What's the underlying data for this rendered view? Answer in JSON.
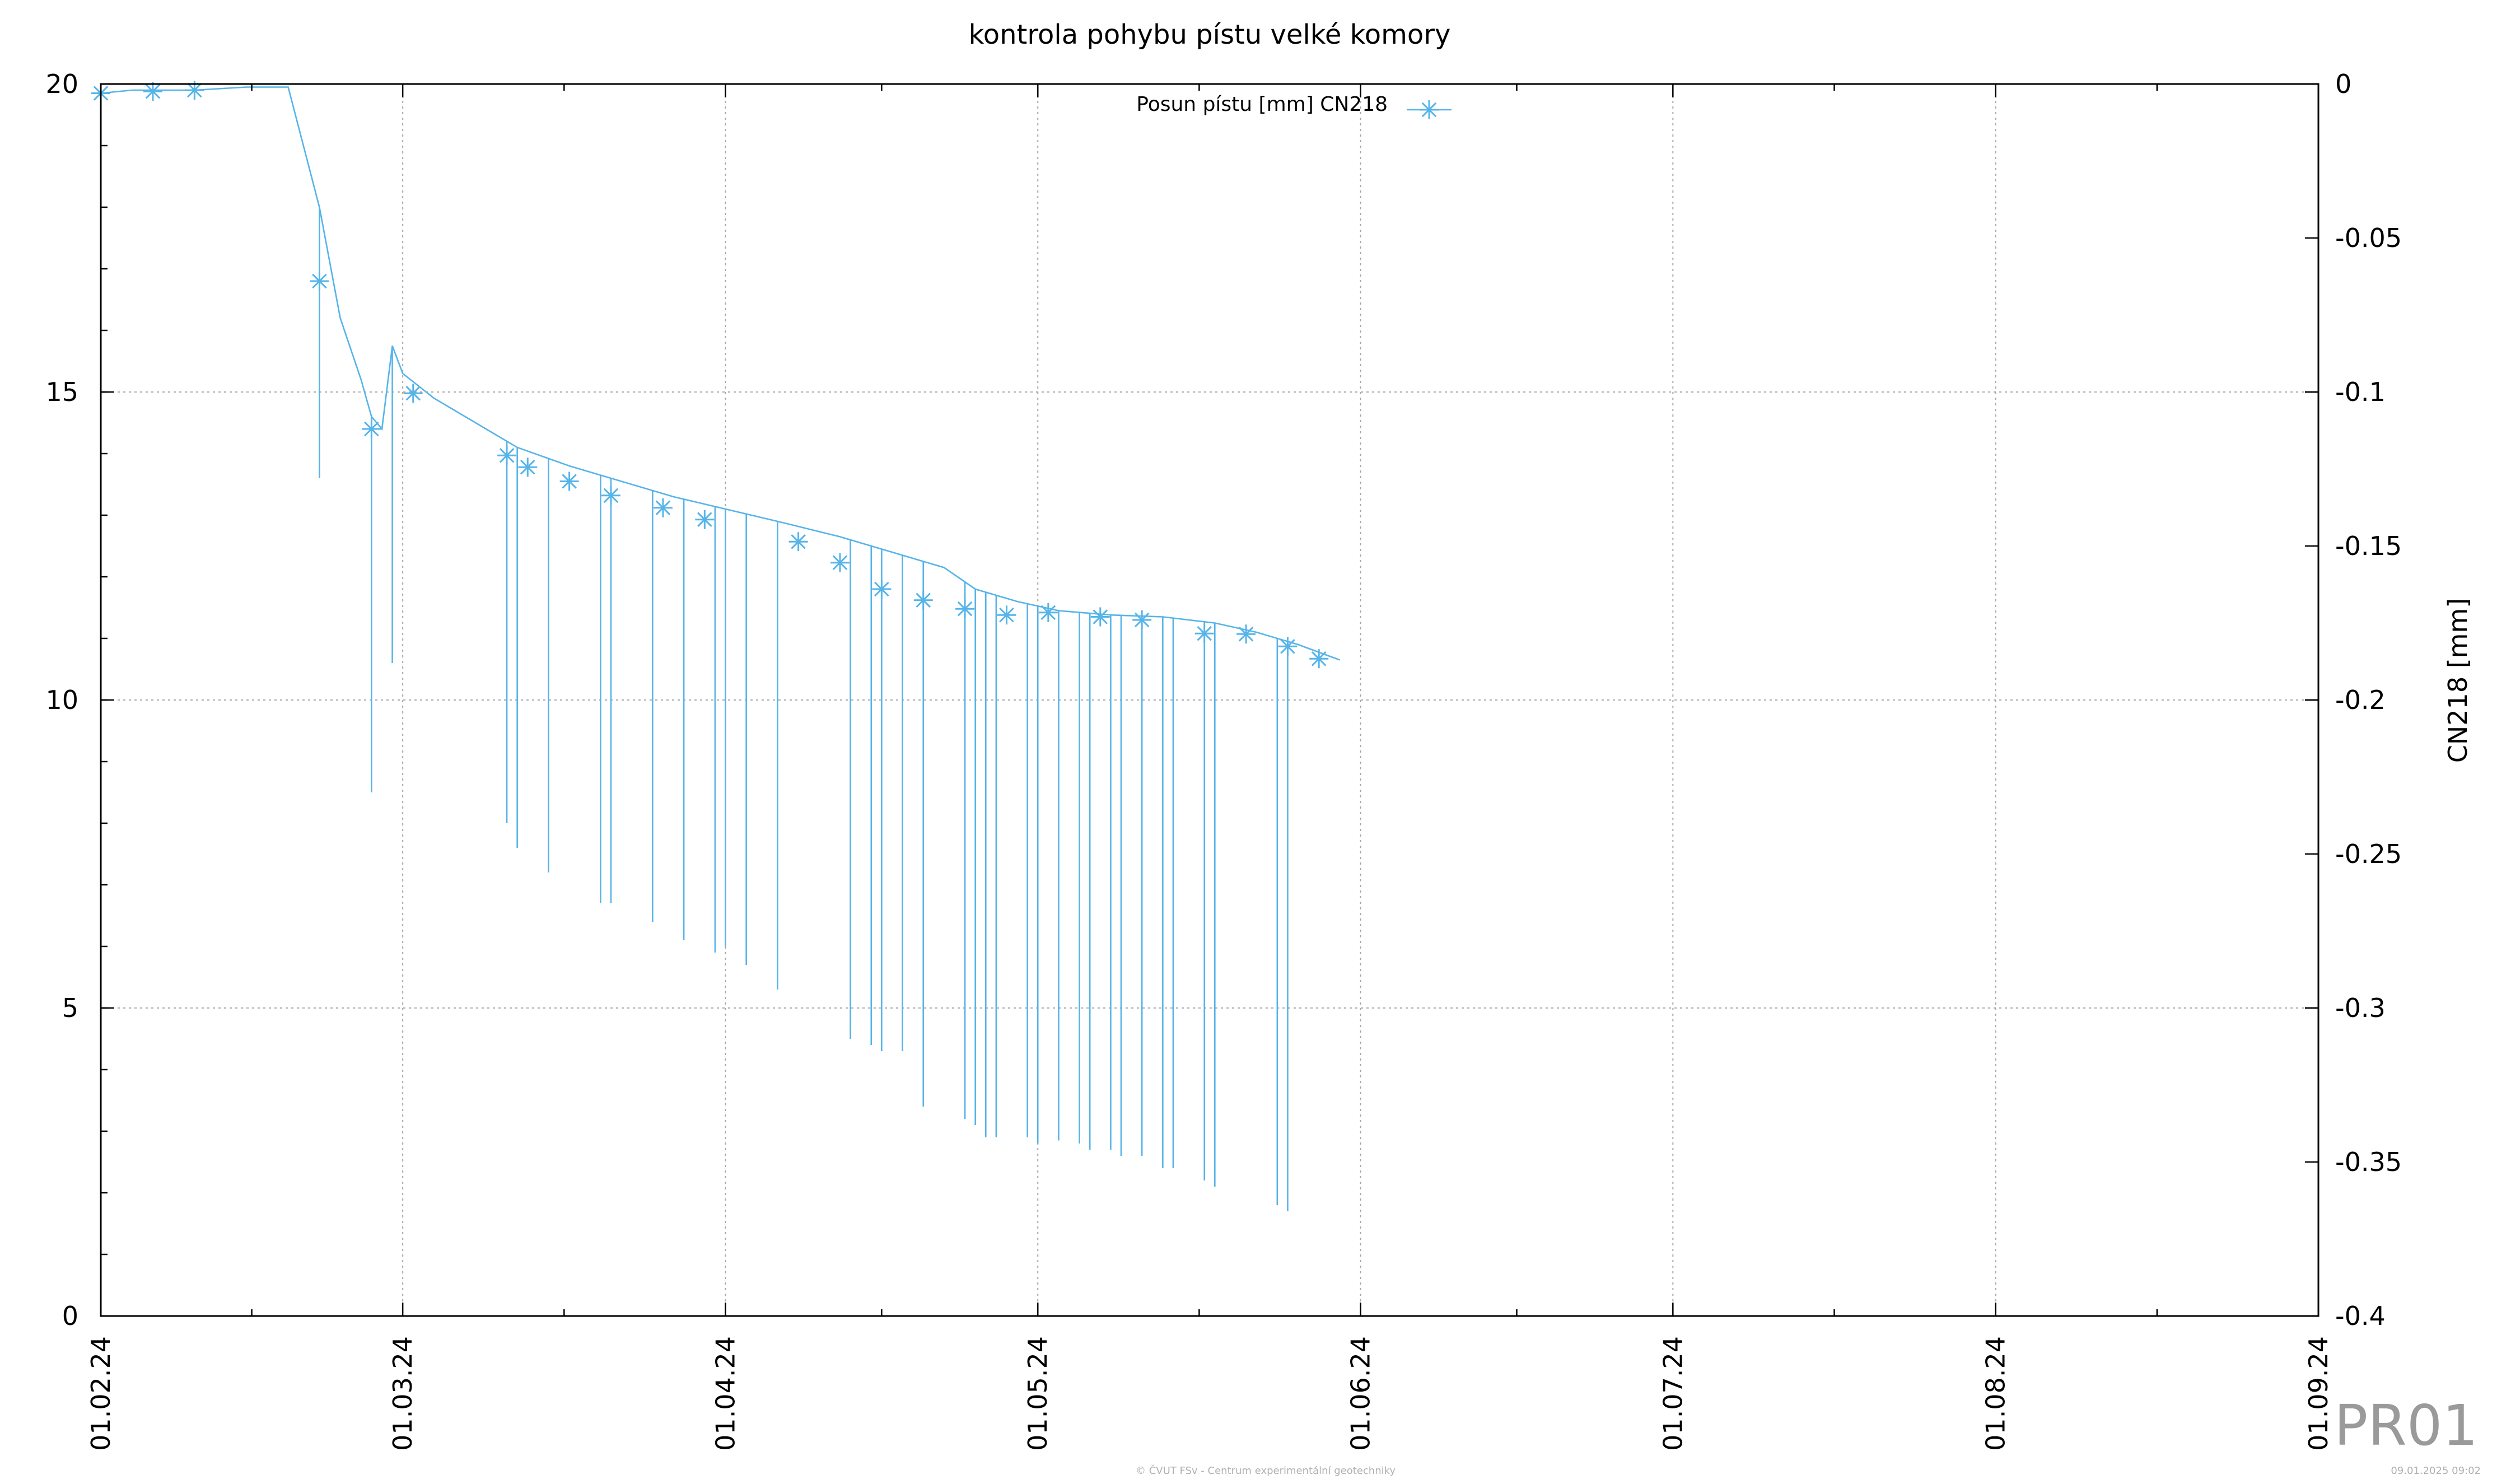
{
  "chart_data": {
    "type": "line",
    "title": "kontrola pohybu pístu velké komory",
    "ylabel": "",
    "y2label": "CN218 [mm]",
    "xlim": [
      "2024-02-01",
      "2024-09-01"
    ],
    "ylim": [
      0,
      20
    ],
    "y2lim": [
      -0.4,
      0
    ],
    "grid": true,
    "legend_position": "top-center",
    "x_tick_labels": [
      "01.02.24",
      "01.03.24",
      "01.04.24",
      "01.05.24",
      "01.06.24",
      "01.07.24",
      "01.08.24",
      "01.09.24"
    ],
    "y_tick_labels": [
      "0",
      "5",
      "10",
      "15",
      "20"
    ],
    "y2_tick_labels": [
      "-0.4",
      "-0.35",
      "-0.3",
      "-0.25",
      "-0.2",
      "-0.15",
      "-0.1",
      "-0.05",
      "0"
    ],
    "series": [
      {
        "name": "Posun pístu [mm] CN218",
        "color": "#56b4e9",
        "marker": "asterisk",
        "points": [
          [
            "2024-02-01",
            19.85
          ],
          [
            "2024-02-04",
            19.9
          ],
          [
            "2024-02-10",
            19.9
          ],
          [
            "2024-02-15",
            19.95
          ],
          [
            "2024-02-19",
            19.95
          ],
          [
            "2024-02-22",
            18.0
          ],
          [
            "2024-02-24",
            16.2
          ],
          [
            "2024-02-26",
            15.2
          ],
          [
            "2024-02-27",
            14.6
          ],
          [
            "2024-02-28",
            14.4
          ],
          [
            "2024-02-29",
            15.75
          ],
          [
            "2024-03-01",
            15.3
          ],
          [
            "2024-03-04",
            14.9
          ],
          [
            "2024-03-08",
            14.5
          ],
          [
            "2024-03-12",
            14.1
          ],
          [
            "2024-03-17",
            13.8
          ],
          [
            "2024-03-22",
            13.55
          ],
          [
            "2024-03-27",
            13.3
          ],
          [
            "2024-04-01",
            13.1
          ],
          [
            "2024-04-06",
            12.9
          ],
          [
            "2024-04-12",
            12.65
          ],
          [
            "2024-04-17",
            12.4
          ],
          [
            "2024-04-22",
            12.15
          ],
          [
            "2024-04-25",
            11.8
          ],
          [
            "2024-04-29",
            11.6
          ],
          [
            "2024-05-03",
            11.45
          ],
          [
            "2024-05-08",
            11.38
          ],
          [
            "2024-05-13",
            11.35
          ],
          [
            "2024-05-18",
            11.25
          ],
          [
            "2024-05-22",
            11.1
          ],
          [
            "2024-05-26",
            10.9
          ],
          [
            "2024-05-30",
            10.65
          ]
        ],
        "markers": [
          [
            "2024-02-01",
            19.85
          ],
          [
            "2024-02-06",
            19.88
          ],
          [
            "2024-02-10",
            19.9
          ],
          [
            "2024-02-22",
            16.8
          ],
          [
            "2024-02-27",
            14.4
          ],
          [
            "2024-03-02",
            14.98
          ],
          [
            "2024-03-11",
            13.97
          ],
          [
            "2024-03-13",
            13.78
          ],
          [
            "2024-03-17",
            13.55
          ],
          [
            "2024-03-21",
            13.32
          ],
          [
            "2024-03-26",
            13.12
          ],
          [
            "2024-03-30",
            12.93
          ],
          [
            "2024-04-08",
            12.57
          ],
          [
            "2024-04-12",
            12.23
          ],
          [
            "2024-04-16",
            11.8
          ],
          [
            "2024-04-20",
            11.62
          ],
          [
            "2024-04-24",
            11.48
          ],
          [
            "2024-04-28",
            11.38
          ],
          [
            "2024-05-02",
            11.42
          ],
          [
            "2024-05-07",
            11.35
          ],
          [
            "2024-05-11",
            11.3
          ],
          [
            "2024-05-17",
            11.08
          ],
          [
            "2024-05-21",
            11.07
          ],
          [
            "2024-05-25",
            10.87
          ],
          [
            "2024-05-28",
            10.67
          ]
        ],
        "drop_spikes": [
          [
            "2024-02-22",
            13.6
          ],
          [
            "2024-02-27",
            8.5
          ],
          [
            "2024-02-29",
            10.6
          ],
          [
            "2024-03-11",
            8.0
          ],
          [
            "2024-03-12",
            7.6
          ],
          [
            "2024-03-15",
            7.2
          ],
          [
            "2024-03-20",
            6.7
          ],
          [
            "2024-03-21",
            6.7
          ],
          [
            "2024-03-25",
            6.4
          ],
          [
            "2024-03-28",
            6.1
          ],
          [
            "2024-03-31",
            5.9
          ],
          [
            "2024-04-01",
            6.0
          ],
          [
            "2024-04-03",
            5.7
          ],
          [
            "2024-04-06",
            5.3
          ],
          [
            "2024-04-13",
            4.5
          ],
          [
            "2024-04-15",
            4.4
          ],
          [
            "2024-04-16",
            4.3
          ],
          [
            "2024-04-18",
            4.3
          ],
          [
            "2024-04-20",
            3.4
          ],
          [
            "2024-04-24",
            3.2
          ],
          [
            "2024-04-25",
            3.1
          ],
          [
            "2024-04-26",
            2.9
          ],
          [
            "2024-04-27",
            2.9
          ],
          [
            "2024-04-30",
            2.9
          ],
          [
            "2024-05-01",
            2.8
          ],
          [
            "2024-05-03",
            2.85
          ],
          [
            "2024-05-05",
            2.8
          ],
          [
            "2024-05-06",
            2.7
          ],
          [
            "2024-05-08",
            2.7
          ],
          [
            "2024-05-09",
            2.6
          ],
          [
            "2024-05-11",
            2.6
          ],
          [
            "2024-05-13",
            2.4
          ],
          [
            "2024-05-14",
            2.4
          ],
          [
            "2024-05-17",
            2.2
          ],
          [
            "2024-05-18",
            2.1
          ],
          [
            "2024-05-24",
            1.8
          ],
          [
            "2024-05-25",
            1.7
          ]
        ]
      }
    ]
  },
  "watermark": "PR01",
  "footer_center": "© ČVUT FSv - Centrum experimentální geotechniky",
  "footer_right": "09.01.2025 09:02"
}
